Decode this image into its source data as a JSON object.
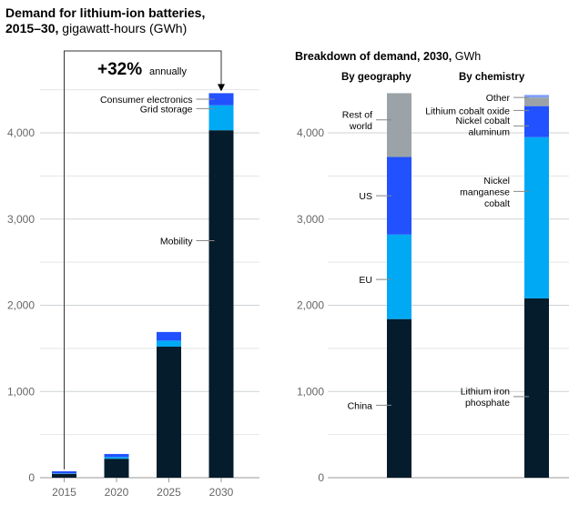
{
  "chart_data": [
    {
      "type": "bar",
      "stacked": true,
      "title": "Demand for lithium-ion batteries,",
      "title_line2_bold": "2015–30,",
      "title_line2_rest": " gigawatt-hours (GWh)",
      "categories": [
        "2015",
        "2020",
        "2025",
        "2030"
      ],
      "series": [
        {
          "name": "Mobility",
          "color": "#051c2c",
          "values": [
            45,
            220,
            1520,
            4030
          ]
        },
        {
          "name": "Grid storage",
          "color": "#00a9f4",
          "values": [
            5,
            20,
            70,
            290
          ]
        },
        {
          "name": "Consumer electronics",
          "color": "#2251ff",
          "values": [
            25,
            35,
            100,
            140
          ]
        }
      ],
      "y_ticks": [
        0,
        1000,
        2000,
        3000,
        4000
      ],
      "y_tick_labels": [
        "0",
        "1,000",
        "2,000",
        "3,000",
        "4,000"
      ],
      "ylim": [
        0,
        4500
      ],
      "grid": true,
      "annotation": {
        "value": "+32%",
        "text": "annually",
        "from": "2015",
        "to": "2030"
      }
    },
    {
      "type": "bar",
      "stacked": true,
      "title": "Breakdown of demand, 2030,",
      "title_rest": " GWh",
      "y_ticks": [
        0,
        1000,
        2000,
        3000,
        4000
      ],
      "y_tick_labels": [
        "0",
        "1,000",
        "2,000",
        "3,000",
        "4,000"
      ],
      "ylim": [
        0,
        4500
      ],
      "grid": true,
      "groups": [
        {
          "header": "By geography",
          "segments": [
            {
              "name": "China",
              "label_lines": [
                "China"
              ],
              "color": "#051c2c",
              "value": 1840
            },
            {
              "name": "EU",
              "label_lines": [
                "EU"
              ],
              "color": "#00a9f4",
              "value": 980
            },
            {
              "name": "US",
              "label_lines": [
                "US"
              ],
              "color": "#2251ff",
              "value": 900
            },
            {
              "name": "Rest of world",
              "label_lines": [
                "Rest of",
                "world"
              ],
              "color": "#9ba3a8",
              "value": 740
            }
          ]
        },
        {
          "header": "By chemistry",
          "segments": [
            {
              "name": "Lithium iron phosphate",
              "label_lines": [
                "Lithium iron",
                "phosphate"
              ],
              "color": "#051c2c",
              "value": 2080
            },
            {
              "name": "Nickel manganese cobalt",
              "label_lines": [
                "Nickel",
                "manganese",
                "cobalt"
              ],
              "color": "#00a9f4",
              "value": 1870
            },
            {
              "name": "Nickel cobalt aluminum",
              "label_lines": [
                "Nickel cobalt",
                "aluminum"
              ],
              "color": "#2251ff",
              "value": 360
            },
            {
              "name": "Lithium cobalt oxide",
              "label_lines": [
                "Lithium cobalt oxide"
              ],
              "color": "#9ba3a8",
              "value": 100
            },
            {
              "name": "Other",
              "label_lines": [
                "Other"
              ],
              "color": "#7ea0ff",
              "value": 30
            }
          ]
        }
      ]
    }
  ]
}
